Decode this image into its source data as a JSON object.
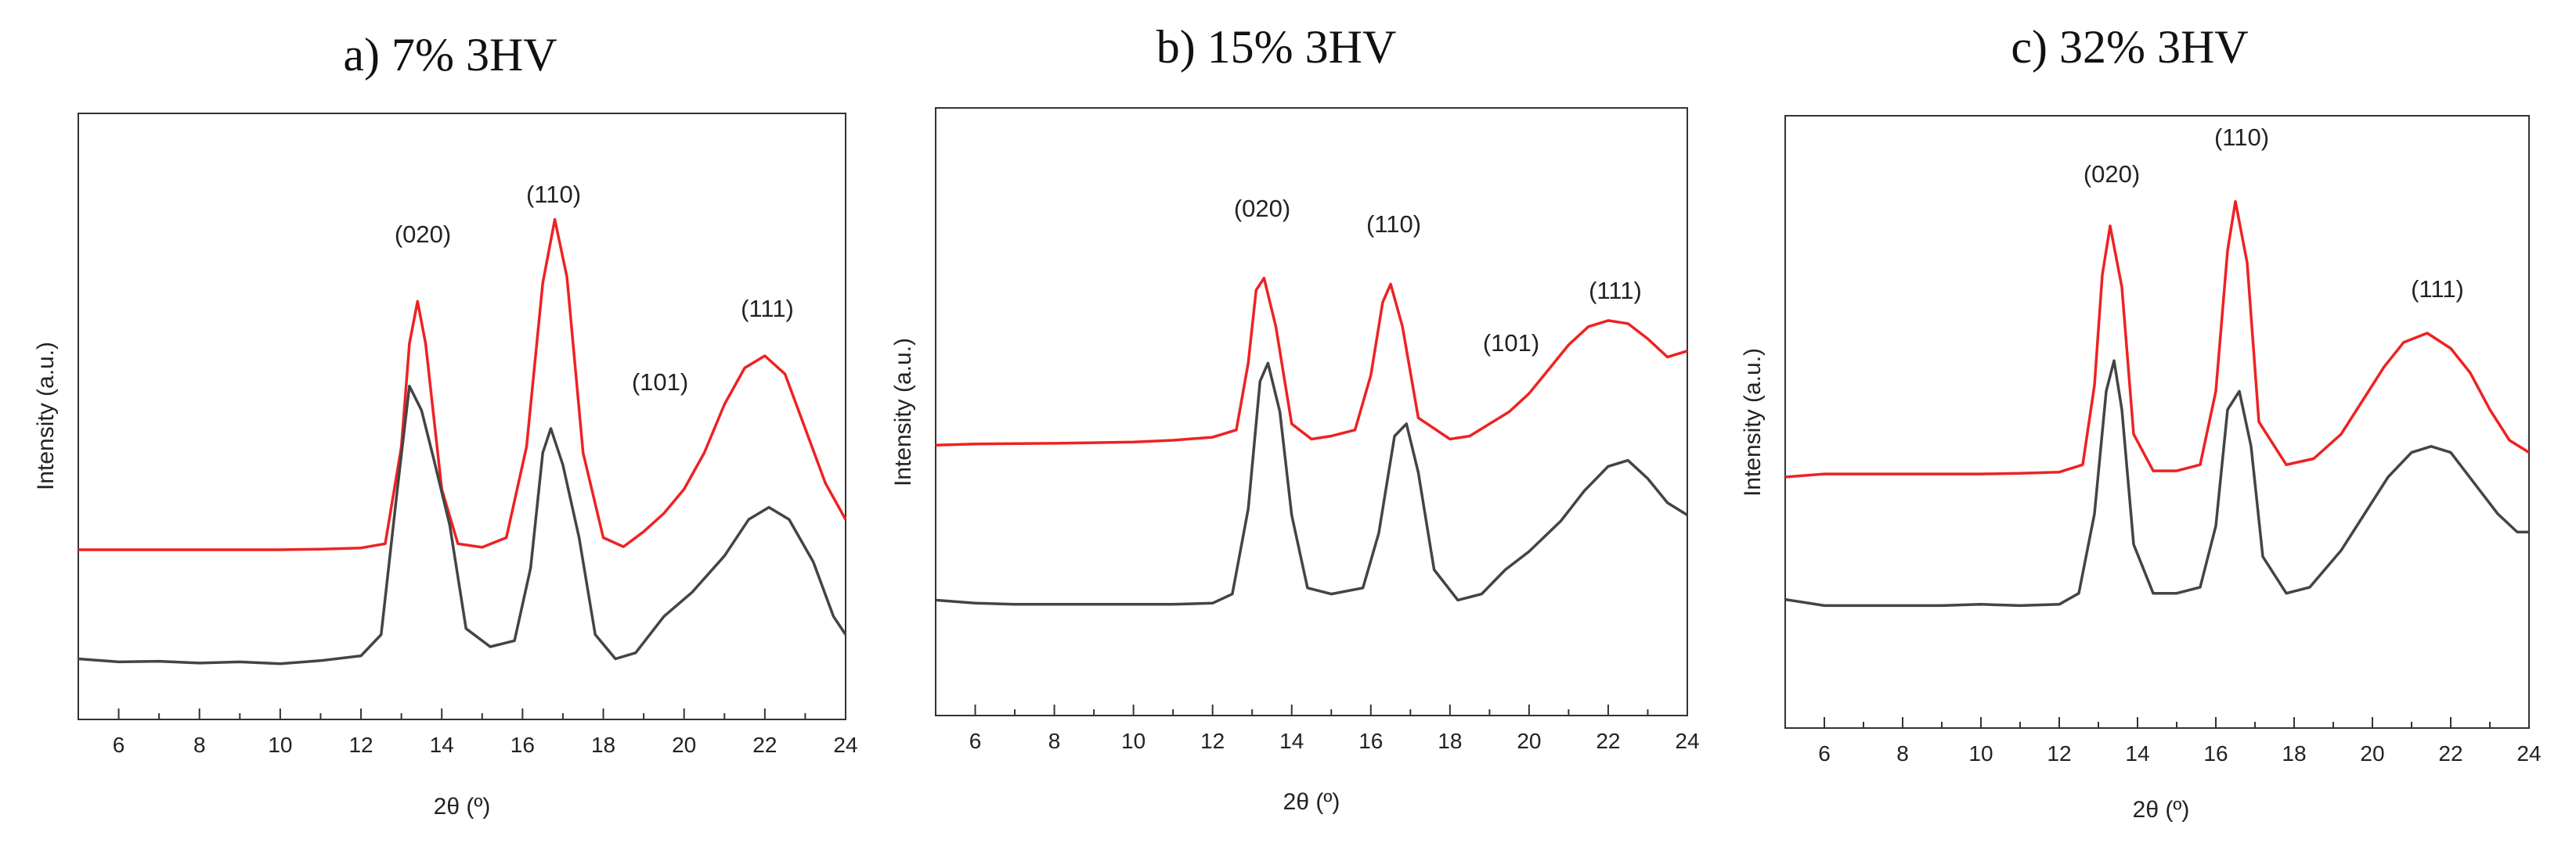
{
  "chart_data": [
    {
      "type": "line",
      "title": "a)  7% 3HV",
      "xlabel": "2θ (º)",
      "ylabel": "Intensity (a.u.)",
      "xlim": [
        5,
        24
      ],
      "ylim": [
        0,
        1
      ],
      "x_ticks": [
        6,
        8,
        10,
        12,
        14,
        16,
        18,
        20,
        22,
        24
      ],
      "y_ticks_shown": false,
      "series": [
        {
          "color": "#ee2222",
          "points": [
            [
              5,
              0.28
            ],
            [
              6,
              0.28
            ],
            [
              8,
              0.28
            ],
            [
              10,
              0.28
            ],
            [
              11,
              0.281
            ],
            [
              12,
              0.283
            ],
            [
              12.6,
              0.29
            ],
            [
              13,
              0.45
            ],
            [
              13.2,
              0.62
            ],
            [
              13.4,
              0.69
            ],
            [
              13.6,
              0.62
            ],
            [
              14,
              0.38
            ],
            [
              14.4,
              0.29
            ],
            [
              15,
              0.284
            ],
            [
              15.6,
              0.3
            ],
            [
              16.1,
              0.45
            ],
            [
              16.5,
              0.72
            ],
            [
              16.8,
              0.825
            ],
            [
              17.1,
              0.73
            ],
            [
              17.5,
              0.44
            ],
            [
              18,
              0.3
            ],
            [
              18.5,
              0.285
            ],
            [
              19,
              0.31
            ],
            [
              19.5,
              0.34
            ],
            [
              20,
              0.38
            ],
            [
              20.5,
              0.44
            ],
            [
              21,
              0.52
            ],
            [
              21.5,
              0.58
            ],
            [
              22,
              0.6
            ],
            [
              22.5,
              0.57
            ],
            [
              23,
              0.48
            ],
            [
              23.5,
              0.39
            ],
            [
              24,
              0.33
            ]
          ]
        },
        {
          "color": "#444444",
          "points": [
            [
              5,
              0.1
            ],
            [
              6,
              0.095
            ],
            [
              7,
              0.096
            ],
            [
              8,
              0.093
            ],
            [
              9,
              0.095
            ],
            [
              10,
              0.092
            ],
            [
              11,
              0.097
            ],
            [
              12,
              0.105
            ],
            [
              12.5,
              0.14
            ],
            [
              12.9,
              0.38
            ],
            [
              13.2,
              0.55
            ],
            [
              13.5,
              0.51
            ],
            [
              13.8,
              0.43
            ],
            [
              14.2,
              0.32
            ],
            [
              14.6,
              0.15
            ],
            [
              15.2,
              0.12
            ],
            [
              15.8,
              0.13
            ],
            [
              16.2,
              0.25
            ],
            [
              16.5,
              0.44
            ],
            [
              16.7,
              0.48
            ],
            [
              17,
              0.42
            ],
            [
              17.4,
              0.3
            ],
            [
              17.8,
              0.14
            ],
            [
              18.3,
              0.1
            ],
            [
              18.8,
              0.11
            ],
            [
              19.5,
              0.17
            ],
            [
              20.2,
              0.21
            ],
            [
              21,
              0.27
            ],
            [
              21.6,
              0.33
            ],
            [
              22.1,
              0.35
            ],
            [
              22.6,
              0.33
            ],
            [
              23.2,
              0.26
            ],
            [
              23.7,
              0.17
            ],
            [
              24,
              0.14
            ]
          ]
        }
      ],
      "annotations": [
        "(020)",
        "(110)",
        "(101)",
        "(111)"
      ]
    },
    {
      "type": "line",
      "title": "b) 15% 3HV",
      "xlabel": "2θ (º)",
      "ylabel": "Intensity (a.u.)",
      "xlim": [
        5,
        24
      ],
      "ylim": [
        0,
        1
      ],
      "x_ticks": [
        6,
        8,
        10,
        12,
        14,
        16,
        18,
        20,
        22,
        24
      ],
      "y_ticks_shown": false,
      "series": [
        {
          "color": "#ee2222",
          "points": [
            [
              5,
              0.445
            ],
            [
              6,
              0.447
            ],
            [
              8,
              0.448
            ],
            [
              10,
              0.45
            ],
            [
              11,
              0.453
            ],
            [
              12,
              0.458
            ],
            [
              12.6,
              0.47
            ],
            [
              12.9,
              0.58
            ],
            [
              13.1,
              0.7
            ],
            [
              13.3,
              0.72
            ],
            [
              13.6,
              0.64
            ],
            [
              14,
              0.48
            ],
            [
              14.5,
              0.455
            ],
            [
              15,
              0.46
            ],
            [
              15.6,
              0.47
            ],
            [
              16,
              0.56
            ],
            [
              16.3,
              0.68
            ],
            [
              16.5,
              0.71
            ],
            [
              16.8,
              0.64
            ],
            [
              17.2,
              0.49
            ],
            [
              18,
              0.455
            ],
            [
              18.5,
              0.46
            ],
            [
              19,
              0.48
            ],
            [
              19.5,
              0.5
            ],
            [
              20,
              0.53
            ],
            [
              20.5,
              0.57
            ],
            [
              21,
              0.61
            ],
            [
              21.5,
              0.64
            ],
            [
              22,
              0.65
            ],
            [
              22.5,
              0.645
            ],
            [
              23,
              0.62
            ],
            [
              23.5,
              0.59
            ],
            [
              24,
              0.6
            ]
          ]
        },
        {
          "color": "#444444",
          "points": [
            [
              5,
              0.19
            ],
            [
              6,
              0.185
            ],
            [
              7,
              0.183
            ],
            [
              8,
              0.183
            ],
            [
              9,
              0.183
            ],
            [
              10,
              0.183
            ],
            [
              11,
              0.183
            ],
            [
              12,
              0.185
            ],
            [
              12.5,
              0.2
            ],
            [
              12.9,
              0.34
            ],
            [
              13.2,
              0.55
            ],
            [
              13.4,
              0.58
            ],
            [
              13.7,
              0.5
            ],
            [
              14,
              0.33
            ],
            [
              14.4,
              0.21
            ],
            [
              15,
              0.2
            ],
            [
              15.8,
              0.21
            ],
            [
              16.2,
              0.3
            ],
            [
              16.6,
              0.46
            ],
            [
              16.9,
              0.48
            ],
            [
              17.2,
              0.4
            ],
            [
              17.6,
              0.24
            ],
            [
              18.2,
              0.19
            ],
            [
              18.8,
              0.2
            ],
            [
              19.4,
              0.24
            ],
            [
              20,
              0.27
            ],
            [
              20.8,
              0.32
            ],
            [
              21.4,
              0.37
            ],
            [
              22,
              0.41
            ],
            [
              22.5,
              0.42
            ],
            [
              23,
              0.39
            ],
            [
              23.5,
              0.35
            ],
            [
              24,
              0.33
            ]
          ]
        }
      ],
      "annotations": [
        "(020)",
        "(110)",
        "(101)",
        "(111)"
      ]
    },
    {
      "type": "line",
      "title": "c) 32% 3HV",
      "xlabel": "2θ (º)",
      "ylabel": "Intensity (a.u.)",
      "xlim": [
        5,
        24
      ],
      "ylim": [
        0,
        1
      ],
      "x_ticks": [
        6,
        8,
        10,
        12,
        14,
        16,
        18,
        20,
        22,
        24
      ],
      "y_ticks_shown": false,
      "series": [
        {
          "color": "#ee2222",
          "points": [
            [
              5,
              0.41
            ],
            [
              6,
              0.415
            ],
            [
              8,
              0.415
            ],
            [
              10,
              0.415
            ],
            [
              11,
              0.416
            ],
            [
              12,
              0.418
            ],
            [
              12.6,
              0.43
            ],
            [
              12.9,
              0.56
            ],
            [
              13.1,
              0.74
            ],
            [
              13.3,
              0.82
            ],
            [
              13.6,
              0.72
            ],
            [
              13.9,
              0.48
            ],
            [
              14.4,
              0.42
            ],
            [
              15,
              0.42
            ],
            [
              15.6,
              0.43
            ],
            [
              16,
              0.55
            ],
            [
              16.3,
              0.78
            ],
            [
              16.5,
              0.86
            ],
            [
              16.8,
              0.76
            ],
            [
              17.1,
              0.5
            ],
            [
              17.8,
              0.43
            ],
            [
              18.5,
              0.44
            ],
            [
              19.2,
              0.48
            ],
            [
              19.8,
              0.54
            ],
            [
              20.3,
              0.59
            ],
            [
              20.8,
              0.63
            ],
            [
              21.4,
              0.645
            ],
            [
              22,
              0.62
            ],
            [
              22.5,
              0.58
            ],
            [
              23,
              0.52
            ],
            [
              23.5,
              0.47
            ],
            [
              24,
              0.45
            ]
          ]
        },
        {
          "color": "#444444",
          "points": [
            [
              5,
              0.21
            ],
            [
              6,
              0.2
            ],
            [
              7,
              0.2
            ],
            [
              8,
              0.2
            ],
            [
              9,
              0.2
            ],
            [
              10,
              0.202
            ],
            [
              11,
              0.2
            ],
            [
              12,
              0.202
            ],
            [
              12.5,
              0.22
            ],
            [
              12.9,
              0.35
            ],
            [
              13.2,
              0.55
            ],
            [
              13.4,
              0.6
            ],
            [
              13.6,
              0.52
            ],
            [
              13.9,
              0.3
            ],
            [
              14.4,
              0.22
            ],
            [
              15,
              0.22
            ],
            [
              15.6,
              0.23
            ],
            [
              16,
              0.33
            ],
            [
              16.3,
              0.52
            ],
            [
              16.6,
              0.55
            ],
            [
              16.9,
              0.46
            ],
            [
              17.2,
              0.28
            ],
            [
              17.8,
              0.22
            ],
            [
              18.4,
              0.23
            ],
            [
              19.2,
              0.29
            ],
            [
              19.8,
              0.35
            ],
            [
              20.4,
              0.41
            ],
            [
              21,
              0.45
            ],
            [
              21.5,
              0.46
            ],
            [
              22,
              0.45
            ],
            [
              22.6,
              0.4
            ],
            [
              23.2,
              0.35
            ],
            [
              23.7,
              0.32
            ],
            [
              24,
              0.32
            ]
          ]
        }
      ],
      "annotations": [
        "(020)",
        "(110)",
        "(111)"
      ]
    }
  ]
}
